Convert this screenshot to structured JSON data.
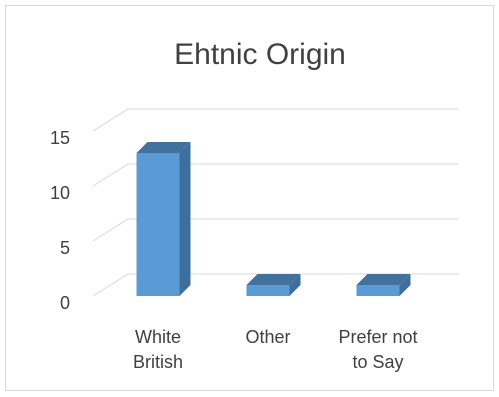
{
  "chart_data": {
    "type": "bar",
    "title": "Ehtnic Origin",
    "xlabel": "",
    "ylabel": "",
    "categories": [
      [
        "White",
        "British"
      ],
      [
        "Other"
      ],
      [
        "Prefer not",
        "to Say"
      ]
    ],
    "values": [
      13,
      1,
      1
    ],
    "ylim": [
      0,
      15
    ],
    "yticks": [
      0,
      5,
      10,
      15
    ],
    "grid": true,
    "legend": "none",
    "colors": {
      "bar_front": "#5b9bd5",
      "bar_side": "#3d6f9e",
      "bar_top": "#41719c",
      "gridline": "#d9d9d9",
      "text": "#404040"
    }
  }
}
